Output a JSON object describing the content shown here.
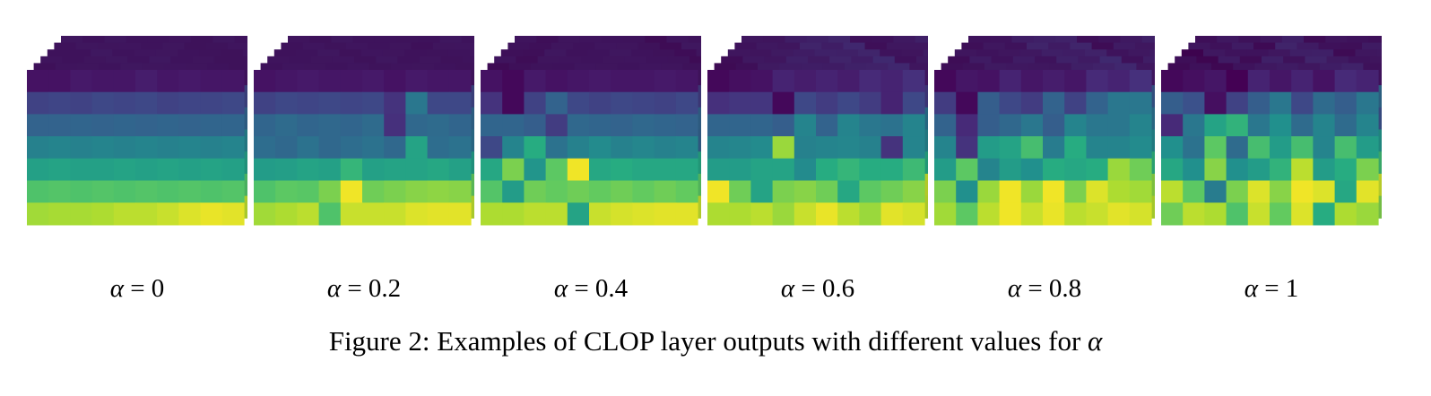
{
  "figure": {
    "caption_prefix": "Figure 2: Examples of CLOP layer outputs with different values for ",
    "caption_symbol": "α",
    "panels": [
      {
        "label_symbol": "α",
        "label_eq": " = ",
        "label_value": "0",
        "grid": [
          [
            0.05,
            0.05,
            0.07,
            0.06,
            0.06,
            0.08,
            0.06,
            0.07,
            0.06,
            0.06
          ],
          [
            0.2,
            0.21,
            0.2,
            0.22,
            0.21,
            0.22,
            0.2,
            0.21,
            0.21,
            0.22
          ],
          [
            0.32,
            0.32,
            0.33,
            0.32,
            0.33,
            0.32,
            0.33,
            0.32,
            0.33,
            0.33
          ],
          [
            0.44,
            0.45,
            0.44,
            0.45,
            0.44,
            0.45,
            0.44,
            0.45,
            0.44,
            0.45
          ],
          [
            0.57,
            0.58,
            0.57,
            0.57,
            0.58,
            0.57,
            0.58,
            0.57,
            0.58,
            0.57
          ],
          [
            0.72,
            0.73,
            0.72,
            0.73,
            0.72,
            0.73,
            0.72,
            0.73,
            0.72,
            0.73
          ],
          [
            0.86,
            0.87,
            0.87,
            0.88,
            0.9,
            0.9,
            0.92,
            0.95,
            0.97,
            0.96
          ]
        ]
      },
      {
        "label_symbol": "α",
        "label_eq": " = ",
        "label_value": "0.2",
        "grid": [
          [
            0.05,
            0.06,
            0.07,
            0.06,
            0.06,
            0.07,
            0.05,
            0.07,
            0.06,
            0.06
          ],
          [
            0.2,
            0.22,
            0.21,
            0.22,
            0.21,
            0.22,
            0.15,
            0.4,
            0.22,
            0.22
          ],
          [
            0.33,
            0.35,
            0.33,
            0.34,
            0.33,
            0.35,
            0.14,
            0.34,
            0.35,
            0.33
          ],
          [
            0.36,
            0.34,
            0.38,
            0.34,
            0.36,
            0.38,
            0.34,
            0.58,
            0.36,
            0.38
          ],
          [
            0.55,
            0.56,
            0.58,
            0.57,
            0.66,
            0.57,
            0.58,
            0.58,
            0.6,
            0.57
          ],
          [
            0.72,
            0.75,
            0.74,
            0.8,
            0.98,
            0.78,
            0.8,
            0.82,
            0.83,
            0.82
          ],
          [
            0.86,
            0.88,
            0.9,
            0.72,
            0.92,
            0.92,
            0.92,
            0.95,
            0.96,
            0.96
          ]
        ]
      },
      {
        "label_symbol": "α",
        "label_eq": " = ",
        "label_value": "0.4",
        "grid": [
          [
            0.05,
            0.02,
            0.07,
            0.05,
            0.06,
            0.07,
            0.06,
            0.06,
            0.07,
            0.06
          ],
          [
            0.15,
            0.02,
            0.2,
            0.32,
            0.22,
            0.2,
            0.22,
            0.21,
            0.2,
            0.22
          ],
          [
            0.33,
            0.33,
            0.3,
            0.18,
            0.34,
            0.33,
            0.32,
            0.34,
            0.33,
            0.32
          ],
          [
            0.22,
            0.45,
            0.62,
            0.38,
            0.44,
            0.48,
            0.44,
            0.46,
            0.44,
            0.45
          ],
          [
            0.6,
            0.8,
            0.52,
            0.75,
            0.98,
            0.6,
            0.62,
            0.6,
            0.6,
            0.6
          ],
          [
            0.73,
            0.55,
            0.78,
            0.76,
            0.78,
            0.76,
            0.78,
            0.76,
            0.78,
            0.76
          ],
          [
            0.88,
            0.88,
            0.9,
            0.9,
            0.58,
            0.92,
            0.94,
            0.95,
            0.96,
            0.96
          ]
        ]
      },
      {
        "label_symbol": "α",
        "label_eq": " = ",
        "label_value": "0.6",
        "grid": [
          [
            0.02,
            0.04,
            0.05,
            0.1,
            0.08,
            0.1,
            0.08,
            0.12,
            0.1,
            0.14
          ],
          [
            0.14,
            0.16,
            0.16,
            0.02,
            0.22,
            0.18,
            0.22,
            0.18,
            0.1,
            0.22
          ],
          [
            0.33,
            0.33,
            0.33,
            0.3,
            0.45,
            0.32,
            0.45,
            0.4,
            0.38,
            0.45
          ],
          [
            0.45,
            0.46,
            0.48,
            0.85,
            0.44,
            0.45,
            0.46,
            0.44,
            0.15,
            0.45
          ],
          [
            0.55,
            0.55,
            0.58,
            0.58,
            0.48,
            0.62,
            0.66,
            0.62,
            0.62,
            0.68
          ],
          [
            0.98,
            0.78,
            0.58,
            0.8,
            0.82,
            0.78,
            0.6,
            0.75,
            0.78,
            0.82
          ],
          [
            0.88,
            0.88,
            0.9,
            0.85,
            0.92,
            0.97,
            0.9,
            0.85,
            0.96,
            0.94
          ]
        ]
      },
      {
        "label_symbol": "α",
        "label_eq": " = ",
        "label_value": "0.8",
        "grid": [
          [
            0.02,
            0.06,
            0.05,
            0.1,
            0.06,
            0.08,
            0.06,
            0.12,
            0.1,
            0.14
          ],
          [
            0.18,
            0.02,
            0.3,
            0.22,
            0.18,
            0.32,
            0.2,
            0.32,
            0.4,
            0.4
          ],
          [
            0.32,
            0.12,
            0.3,
            0.34,
            0.4,
            0.3,
            0.45,
            0.4,
            0.4,
            0.45
          ],
          [
            0.45,
            0.15,
            0.55,
            0.58,
            0.7,
            0.42,
            0.62,
            0.45,
            0.45,
            0.48
          ],
          [
            0.55,
            0.75,
            0.45,
            0.55,
            0.5,
            0.62,
            0.6,
            0.62,
            0.85,
            0.78
          ],
          [
            0.8,
            0.5,
            0.85,
            0.98,
            0.85,
            0.98,
            0.8,
            0.95,
            0.88,
            0.86
          ],
          [
            0.86,
            0.75,
            0.9,
            0.98,
            0.92,
            0.97,
            0.9,
            0.92,
            0.96,
            0.94
          ]
        ]
      },
      {
        "label_symbol": "α",
        "label_eq": " = ",
        "label_value": "1",
        "grid": [
          [
            0.02,
            0.04,
            0.06,
            0.0,
            0.1,
            0.06,
            0.1,
            0.05,
            0.12,
            0.1
          ],
          [
            0.3,
            0.25,
            0.04,
            0.2,
            0.3,
            0.4,
            0.22,
            0.35,
            0.3,
            0.4
          ],
          [
            0.12,
            0.4,
            0.58,
            0.65,
            0.4,
            0.5,
            0.35,
            0.45,
            0.35,
            0.45
          ],
          [
            0.5,
            0.38,
            0.75,
            0.35,
            0.7,
            0.55,
            0.7,
            0.45,
            0.7,
            0.55
          ],
          [
            0.6,
            0.5,
            0.82,
            0.5,
            0.55,
            0.65,
            0.9,
            0.55,
            0.62,
            0.8
          ],
          [
            0.9,
            0.75,
            0.42,
            0.8,
            0.95,
            0.82,
            0.98,
            0.95,
            0.6,
            0.96
          ],
          [
            0.78,
            0.9,
            0.88,
            0.72,
            0.92,
            0.76,
            0.95,
            0.62,
            0.88,
            0.85
          ]
        ]
      }
    ]
  }
}
